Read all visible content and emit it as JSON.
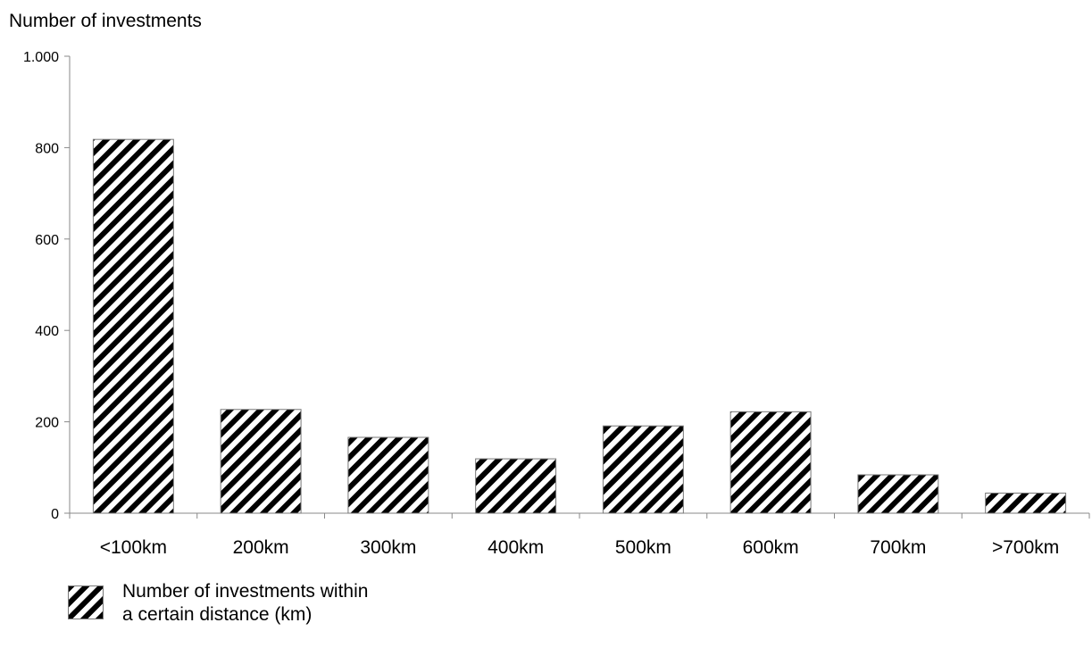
{
  "chart_data": {
    "type": "bar",
    "title": "",
    "ylabel": "Number of investments",
    "xlabel": "",
    "categories": [
      "<100km",
      "200km",
      "300km",
      "400km",
      "500km",
      "600km",
      "700km",
      ">700km"
    ],
    "series": [
      {
        "name": "Number of investments within a certain distance (km)",
        "values": [
          818,
          227,
          166,
          119,
          191,
          222,
          84,
          44
        ]
      }
    ],
    "ylim": [
      0,
      1000
    ],
    "yticks": [
      0,
      200,
      400,
      600,
      800,
      1000
    ],
    "ytick_labels": [
      "0",
      "200",
      "400",
      "600",
      "800",
      "1.000"
    ],
    "grid": false,
    "fill_pattern": "diagonal-stripes",
    "bar_color": "#000000",
    "legend_position": "bottom-left"
  },
  "legend": {
    "line1": "Number of investments within",
    "line2": "a certain distance (km)"
  }
}
